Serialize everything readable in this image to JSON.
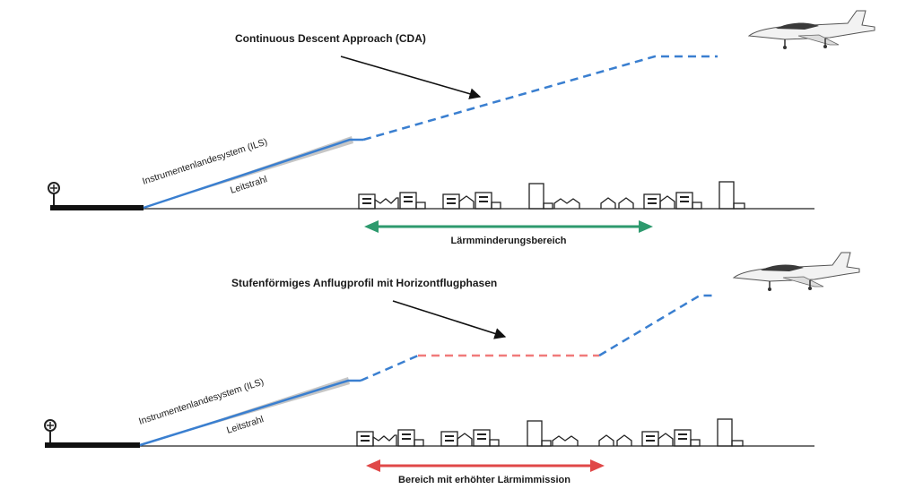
{
  "top": {
    "title": "Continuous Descent Approach (CDA)",
    "ils_label": "Instrumentenlandesystem (ILS)",
    "beam_label": "Leitstrahl",
    "zone_label": "Lärmminderungsbereich",
    "zone_color": "#2e9a6e",
    "path_color": "#3a7fd0"
  },
  "bottom": {
    "title": "Stufenförmiges Anflugprofil mit Horizontflugphasen",
    "ils_label": "Instrumentenlandesystem (ILS)",
    "beam_label": "Leitstrahl",
    "zone_label": "Bereich mit erhöhter Lärmimmission",
    "zone_color": "#e04848",
    "path_color": "#3a7fd0",
    "level_color": "#f07a7a"
  }
}
